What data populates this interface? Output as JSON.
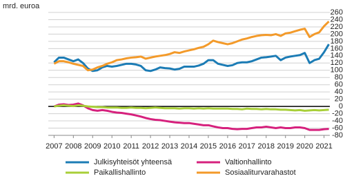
{
  "chart_data": {
    "type": "line",
    "y_label": "mrd. euroa",
    "x": [
      2007,
      2007.25,
      2007.5,
      2007.75,
      2008,
      2008.25,
      2008.5,
      2008.75,
      2009,
      2009.25,
      2009.5,
      2009.75,
      2010,
      2010.25,
      2010.5,
      2010.75,
      2011,
      2011.25,
      2011.5,
      2011.75,
      2012,
      2012.25,
      2012.5,
      2012.75,
      2013,
      2013.25,
      2013.5,
      2013.75,
      2014,
      2014.25,
      2014.5,
      2014.75,
      2015,
      2015.25,
      2015.5,
      2015.75,
      2016,
      2016.25,
      2016.5,
      2016.75,
      2017,
      2017.25,
      2017.5,
      2017.75,
      2018,
      2018.25,
      2018.5,
      2018.75,
      2019,
      2019.25,
      2019.5,
      2019.75,
      2020,
      2020.25,
      2020.5,
      2020.75,
      2021,
      2021.25
    ],
    "series": [
      {
        "name": "Julkisyhteisöt yhteensä",
        "color": "#1c7cb5",
        "values": [
          122,
          135,
          135,
          130,
          125,
          130,
          120,
          105,
          98,
          100,
          108,
          112,
          110,
          112,
          115,
          118,
          118,
          116,
          112,
          100,
          98,
          102,
          108,
          106,
          105,
          102,
          104,
          110,
          110,
          110,
          113,
          118,
          128,
          128,
          118,
          115,
          112,
          114,
          120,
          122,
          122,
          125,
          130,
          135,
          136,
          138,
          140,
          128,
          135,
          138,
          140,
          142,
          148,
          120,
          128,
          132,
          150,
          172
        ]
      },
      {
        "name": "Valtionhallinto",
        "color": "#d6217d",
        "values": [
          0,
          5,
          6,
          4,
          5,
          8,
          3,
          -5,
          -10,
          -12,
          -10,
          -12,
          -15,
          -17,
          -18,
          -20,
          -22,
          -25,
          -28,
          -32,
          -35,
          -37,
          -38,
          -40,
          -42,
          -44,
          -45,
          -46,
          -46,
          -48,
          -50,
          -52,
          -52,
          -55,
          -58,
          -60,
          -60,
          -62,
          -63,
          -62,
          -62,
          -60,
          -58,
          -58,
          -56,
          -58,
          -60,
          -58,
          -60,
          -60,
          -58,
          -58,
          -60,
          -65,
          -65,
          -65,
          -63,
          -62
        ]
      },
      {
        "name": "Paikallishallinto",
        "color": "#a8cf38",
        "values": [
          0,
          2,
          3,
          2,
          1,
          3,
          2,
          0,
          -1,
          -2,
          -2,
          -3,
          -3,
          -3,
          -4,
          -4,
          -3,
          -4,
          -4,
          -5,
          -4,
          -3,
          -4,
          -5,
          -5,
          -5,
          -6,
          -5,
          -5,
          -6,
          -5,
          -6,
          -5,
          -6,
          -6,
          -6,
          -6,
          -7,
          -7,
          -8,
          -6,
          -7,
          -7,
          -8,
          -7,
          -8,
          -8,
          -9,
          -9,
          -10,
          -11,
          -10,
          -12,
          -11,
          -10,
          -11,
          -10,
          -9
        ]
      },
      {
        "name": "Sosiaaliturvarahastot",
        "color": "#f39a2a",
        "values": [
          118,
          125,
          125,
          122,
          118,
          115,
          112,
          100,
          102,
          108,
          112,
          118,
          122,
          128,
          130,
          133,
          135,
          136,
          138,
          132,
          135,
          138,
          140,
          142,
          145,
          150,
          148,
          152,
          155,
          158,
          162,
          165,
          172,
          182,
          178,
          175,
          172,
          175,
          180,
          185,
          188,
          192,
          195,
          197,
          198,
          197,
          200,
          195,
          202,
          204,
          208,
          212,
          215,
          192,
          200,
          205,
          222,
          235
        ]
      }
    ],
    "xlim": [
      2006.7,
      2021.3
    ],
    "xticks": [
      2007,
      2008,
      2009,
      2010,
      2011,
      2012,
      2013,
      2014,
      2015,
      2016,
      2017,
      2018,
      2019,
      2020,
      2021
    ],
    "ylim": [
      -80,
      260
    ],
    "yticks": [
      -80,
      -60,
      -40,
      -20,
      0,
      20,
      40,
      60,
      80,
      100,
      120,
      140,
      160,
      180,
      200,
      220,
      240,
      260
    ],
    "grid": true
  }
}
